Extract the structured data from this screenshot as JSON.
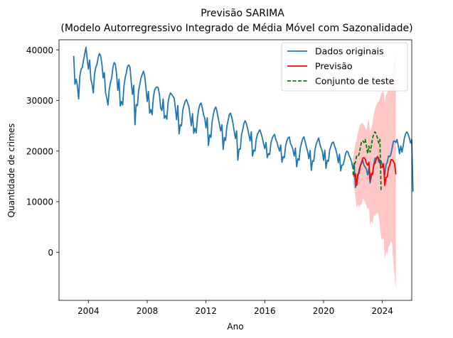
{
  "chart_data": {
    "type": "line",
    "title": "Previsão SARIMA",
    "subtitle": "(Modelo Autorregressivo Integrado de Média Móvel com Sazonalidade)",
    "xlabel": "Ano",
    "ylabel": "Quantidade de crimes",
    "xlim": [
      2002.0,
      2026.0
    ],
    "ylim": [
      -9500,
      42000
    ],
    "xticks": [
      2004,
      2008,
      2012,
      2016,
      2020,
      2024
    ],
    "yticks": [
      0,
      10000,
      20000,
      30000,
      40000
    ],
    "grid": false,
    "legend_position": "top-right",
    "series": [
      {
        "name": "Dados originais",
        "color": "#1f77b4",
        "style": "solid",
        "start": 2003.0,
        "step": 0.0833333,
        "values": [
          38800,
          33200,
          34200,
          33000,
          30300,
          34800,
          36200,
          36500,
          38000,
          39200,
          40500,
          38200,
          36200,
          38000,
          34200,
          33200,
          31500,
          35200,
          36500,
          37200,
          38500,
          39300,
          38800,
          37200,
          34500,
          35500,
          31500,
          30500,
          29100,
          32200,
          33500,
          34500,
          36500,
          37500,
          37200,
          35200,
          32000,
          34200,
          28900,
          29800,
          29100,
          32800,
          34500,
          35500,
          36800,
          37000,
          36500,
          33500,
          31200,
          33000,
          25200,
          29200,
          29000,
          32000,
          33200,
          34500,
          35200,
          35800,
          34800,
          32500,
          29800,
          31800,
          27500,
          28200,
          27200,
          30500,
          32000,
          32500,
          32700,
          32500,
          31200,
          28500,
          28000,
          30300,
          26500,
          27000,
          26300,
          29500,
          30800,
          31500,
          31200,
          30800,
          30500,
          28500,
          26200,
          29000,
          23400,
          25200,
          25000,
          28000,
          29000,
          29800,
          30200,
          29500,
          28800,
          27000,
          25000,
          27400,
          23500,
          24500,
          23600,
          26500,
          28200,
          29200,
          29500,
          28500,
          27200,
          26500,
          24600,
          26600,
          21100,
          23200,
          22700,
          25800,
          27200,
          28300,
          28700,
          27800,
          26500,
          25200,
          24000,
          25200,
          20300,
          22700,
          22100,
          24800,
          26000,
          27200,
          27500,
          26700,
          25500,
          24000,
          22500,
          24000,
          18200,
          20400,
          20400,
          23200,
          24200,
          25500,
          26000,
          25400,
          24400,
          23300,
          22000,
          23800,
          19000,
          20200,
          20000,
          22300,
          23300,
          23800,
          24200,
          23500,
          22600,
          21500,
          20500,
          21700,
          18700,
          19500,
          19300,
          21500,
          22500,
          23000,
          23300,
          22300,
          21700,
          20800,
          20000,
          21200,
          17800,
          18900,
          18700,
          21000,
          22000,
          22600,
          22800,
          21500,
          21000,
          20300,
          19000,
          20600,
          16900,
          18500,
          18200,
          20600,
          21600,
          22500,
          22800,
          21800,
          20800,
          19900,
          18500,
          20100,
          16200,
          18100,
          18000,
          20300,
          21400,
          22000,
          22600,
          21400,
          20600,
          19900,
          18200,
          20200,
          16600,
          18200,
          18000,
          20200,
          21000,
          21600,
          21800,
          21000,
          20300,
          19300,
          17700,
          19400,
          16100,
          17200,
          17300,
          18300,
          19500,
          20000,
          19800,
          19000,
          18500,
          17800,
          16500,
          17600,
          12800,
          14200,
          14800,
          16400,
          17000,
          17900,
          18200,
          17200,
          16800,
          16400,
          15300,
          16600,
          13700,
          15000,
          15600,
          17400,
          18600,
          18600,
          18900,
          17900,
          17600,
          18000,
          17200,
          16800,
          15300,
          17300,
          17800,
          19000,
          18900,
          19400,
          20600,
          21900,
          22000,
          21700,
          22300,
          21000,
          19500,
          21000,
          19800,
          21000,
          22600,
          23400,
          23800,
          23400,
          22600,
          21600,
          22300,
          12000
        ]
      },
      {
        "name": "Previsão",
        "color": "#ff0000",
        "style": "solid",
        "start": 2022.0,
        "step": 0.0833333,
        "values": [
          16000,
          15000,
          15500,
          13200,
          15400,
          15600,
          17200,
          17600,
          18600,
          18700,
          18400,
          17600,
          17200,
          17800,
          14300,
          15600,
          15400,
          17200,
          17600,
          18400,
          18900,
          18600,
          17800,
          16800,
          16800,
          17500,
          13200,
          14800,
          14900,
          16700,
          17200,
          18300,
          18300,
          18000,
          17500,
          15400
        ]
      },
      {
        "name": "Conjunto de teste",
        "color": "#008000",
        "style": "dashed",
        "start": 2022.0,
        "step": 0.0833333,
        "values": [
          15300,
          17300,
          17800,
          19000,
          18900,
          19400,
          20600,
          21900,
          22000,
          21700,
          22300,
          21000,
          19500,
          21000,
          19800,
          21000,
          22600,
          23400,
          23800,
          23400,
          22600,
          21600,
          22300,
          12000
        ]
      }
    ],
    "confidence_band": {
      "color": "#ffb3b3",
      "start": 2022.0,
      "step": 0.0833333,
      "upper": [
        18500,
        20200,
        21500,
        22200,
        23600,
        24500,
        25300,
        25500,
        25600,
        25200,
        24700,
        24000,
        25500,
        26300,
        23500,
        24800,
        25400,
        27400,
        28300,
        29100,
        29600,
        29800,
        30400,
        31400,
        31600,
        32100,
        29200,
        31100,
        31400,
        33200,
        33800,
        35000,
        35500,
        35700,
        39500,
        38500
      ],
      "lower": [
        13500,
        12500,
        11000,
        8700,
        9500,
        8800,
        9400,
        9400,
        10600,
        10400,
        9800,
        9200,
        8500,
        8800,
        5300,
        6200,
        5700,
        7200,
        7300,
        7600,
        7900,
        7300,
        5200,
        2900,
        2400,
        3000,
        -1400,
        100,
        -400,
        1100,
        1300,
        2300,
        1800,
        -2200,
        -4700,
        -7300
      ]
    }
  }
}
